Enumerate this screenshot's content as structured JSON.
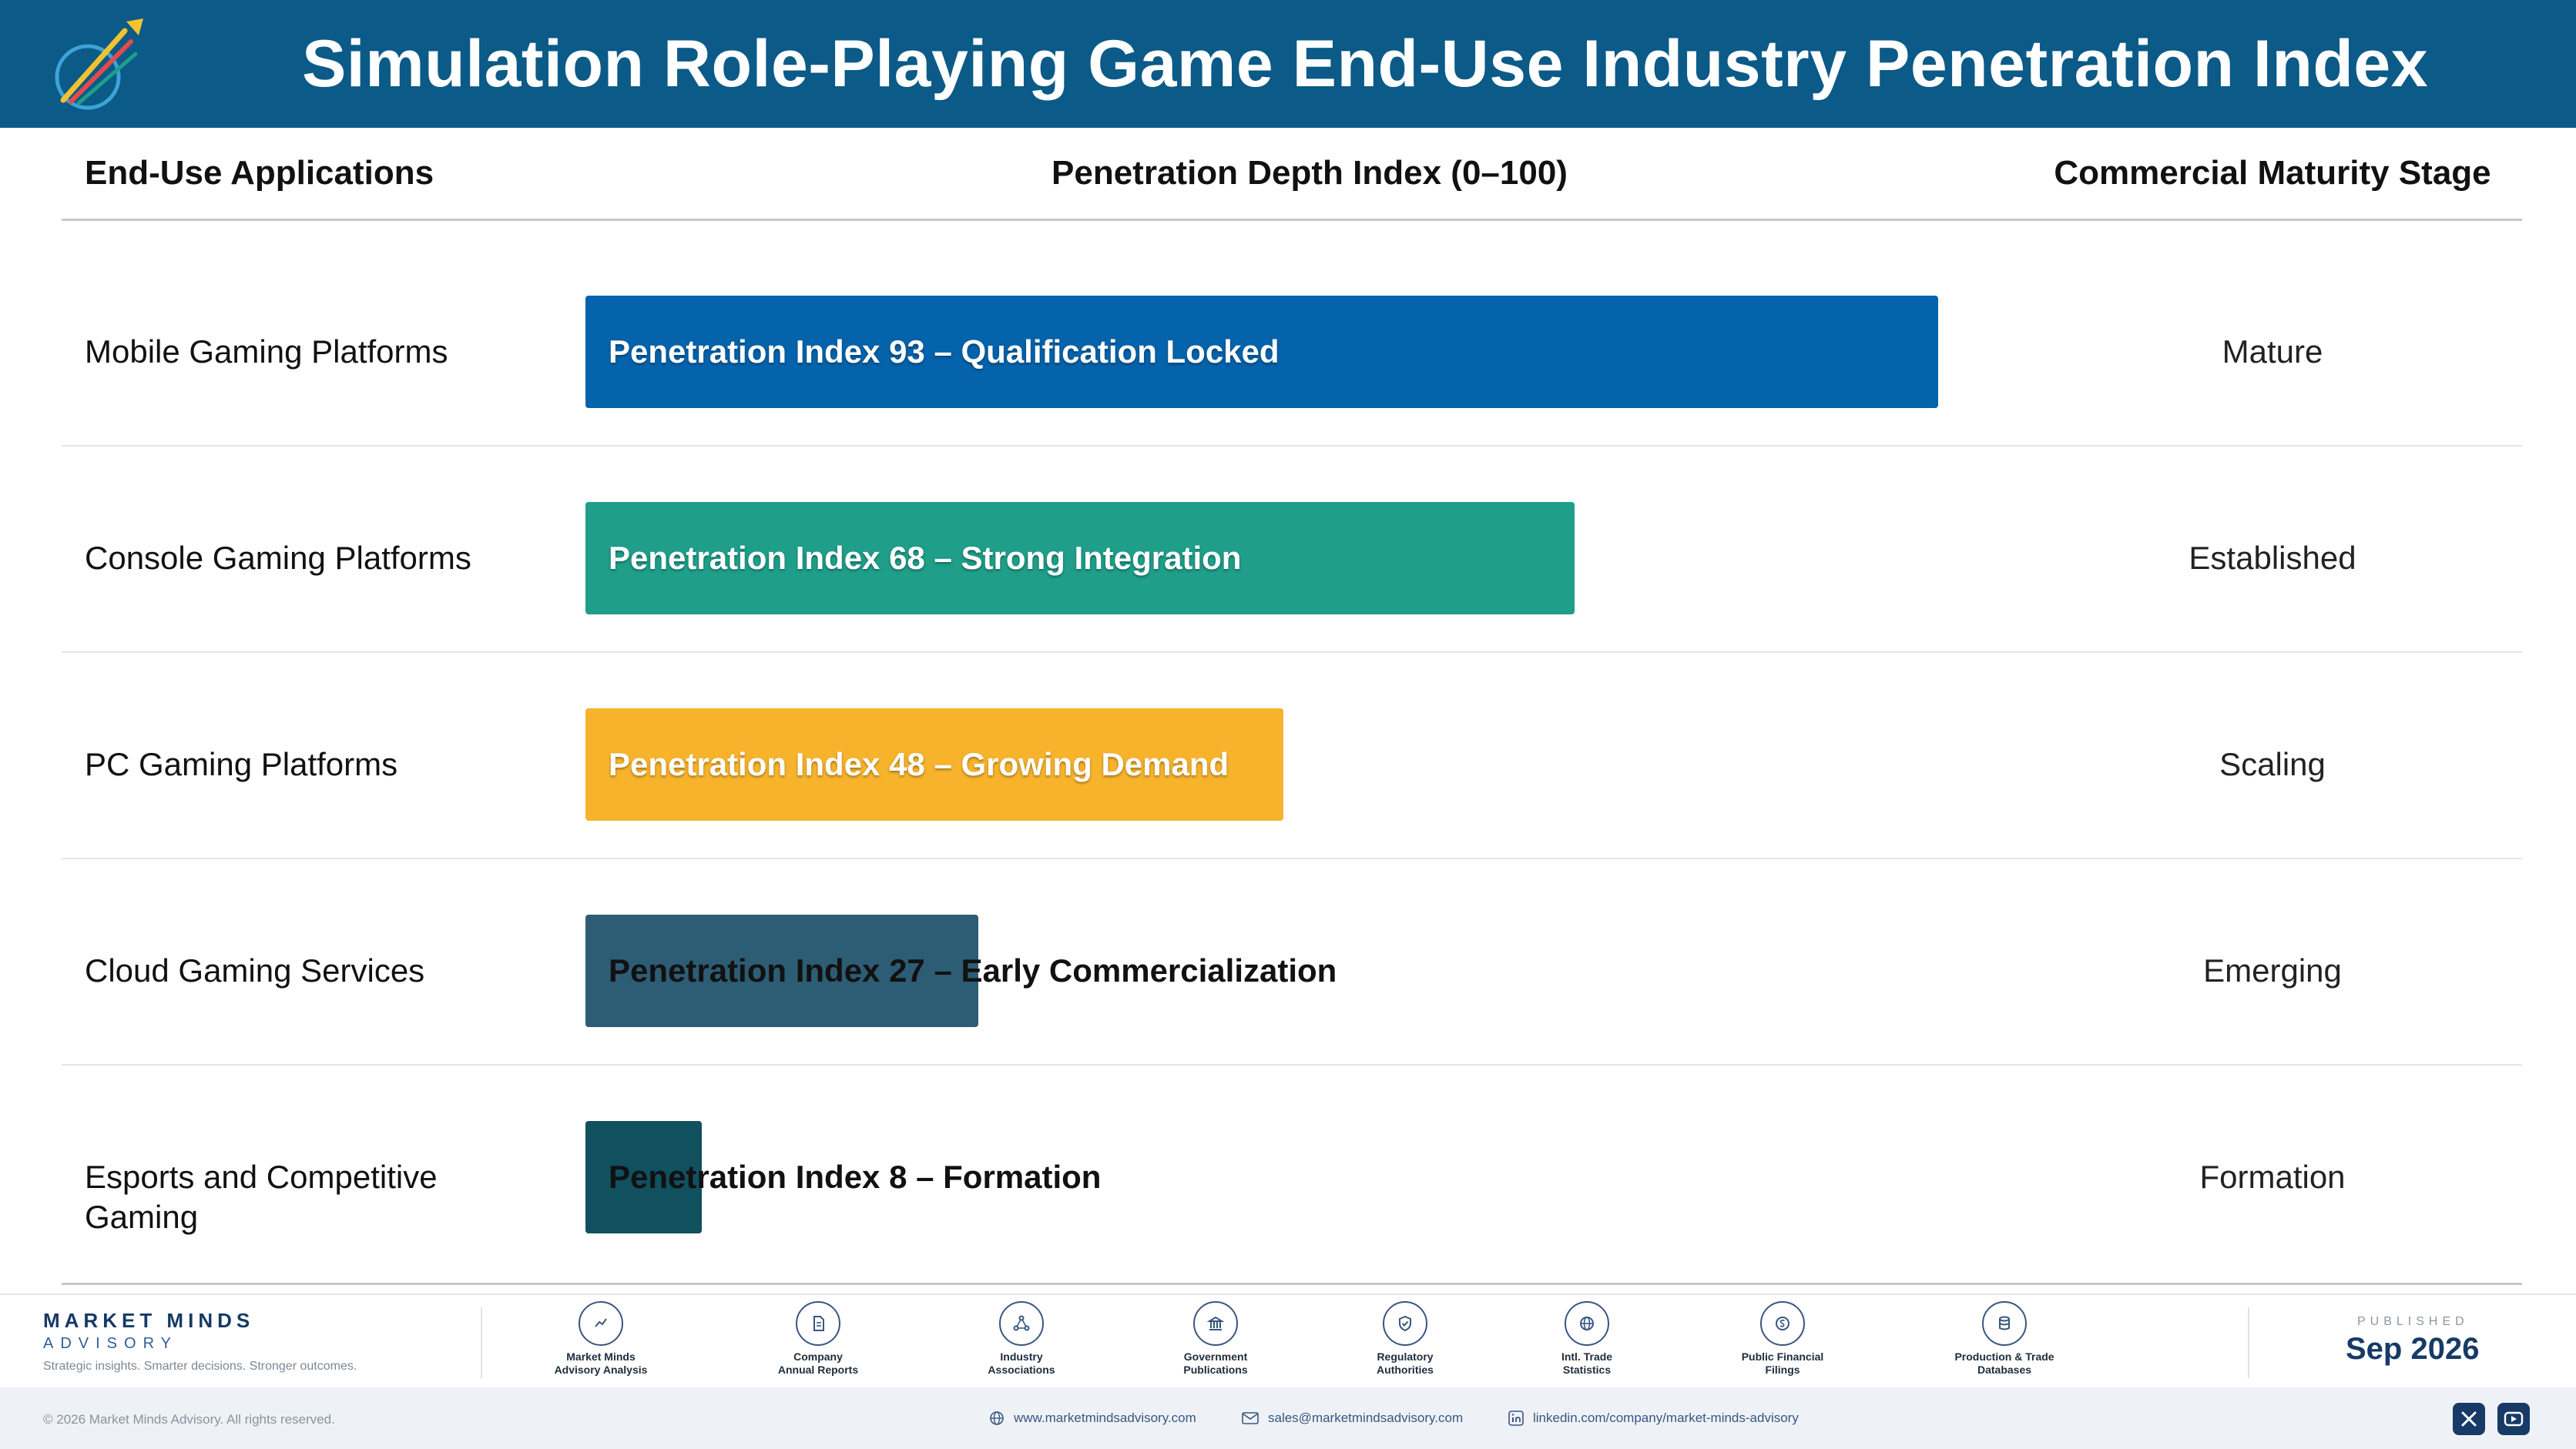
{
  "header": {
    "title": "Simulation Role-Playing Game End-Use Industry Penetration Index"
  },
  "columns": {
    "applications": "End-Use Applications",
    "index": "Penetration Depth Index (0–100)",
    "stage": "Commercial Maturity Stage"
  },
  "chart_data": {
    "type": "bar",
    "orientation": "horizontal",
    "title": "Simulation Role-Playing Game End-Use Industry Penetration Index",
    "xlabel": "Penetration Depth Index (0–100)",
    "ylabel": "End-Use Applications",
    "xlim": [
      0,
      100
    ],
    "grid": false,
    "categories": [
      "Mobile Gaming Platforms",
      "Console Gaming Platforms",
      "PC Gaming Platforms",
      "Cloud Gaming Services",
      "Esports and Competitive Gaming"
    ],
    "values": [
      93,
      68,
      48,
      27,
      8
    ],
    "bar_labels": [
      "Penetration Index 93 – Qualification Locked",
      "Penetration Index 68 – Strong Integration",
      "Penetration Index 48 – Growing Demand",
      "Penetration Index 27 – Early Commercialization",
      "Penetration Index 8 – Formation"
    ],
    "stages": [
      "Mature",
      "Established",
      "Scaling",
      "Emerging",
      "Formation"
    ],
    "colors": [
      "#0563ab",
      "#1f9e8a",
      "#f7b32b",
      "#2d5d75",
      "#11505f"
    ]
  },
  "footer": {
    "brand_name": "MARKET MINDS",
    "brand_sub": "ADVISORY",
    "tagline": "Strategic insights. Smarter decisions. Stronger outcomes.",
    "sources": [
      {
        "label": "Market Minds\nAdvisory Analysis",
        "icon": "trend-chart-icon"
      },
      {
        "label": "Company\nAnnual Reports",
        "icon": "document-icon"
      },
      {
        "label": "Industry\nAssociations",
        "icon": "network-icon"
      },
      {
        "label": "Government\nPublications",
        "icon": "government-building-icon"
      },
      {
        "label": "Regulatory\nAuthorities",
        "icon": "shield-check-icon"
      },
      {
        "label": "Intl. Trade\nStatistics",
        "icon": "globe-icon"
      },
      {
        "label": "Public Financial\nFilings",
        "icon": "coin-icon"
      },
      {
        "label": "Production & Trade\nDatabases",
        "icon": "database-icon"
      }
    ],
    "published_label": "PUBLISHED",
    "published_date": "Sep 2026",
    "copyright": "© 2026 Market Minds Advisory. All rights reserved.",
    "website": "www.marketmindsadvisory.com",
    "email": "sales@marketmindsadvisory.com",
    "linkedin": "linkedin.com/company/market-minds-advisory"
  }
}
